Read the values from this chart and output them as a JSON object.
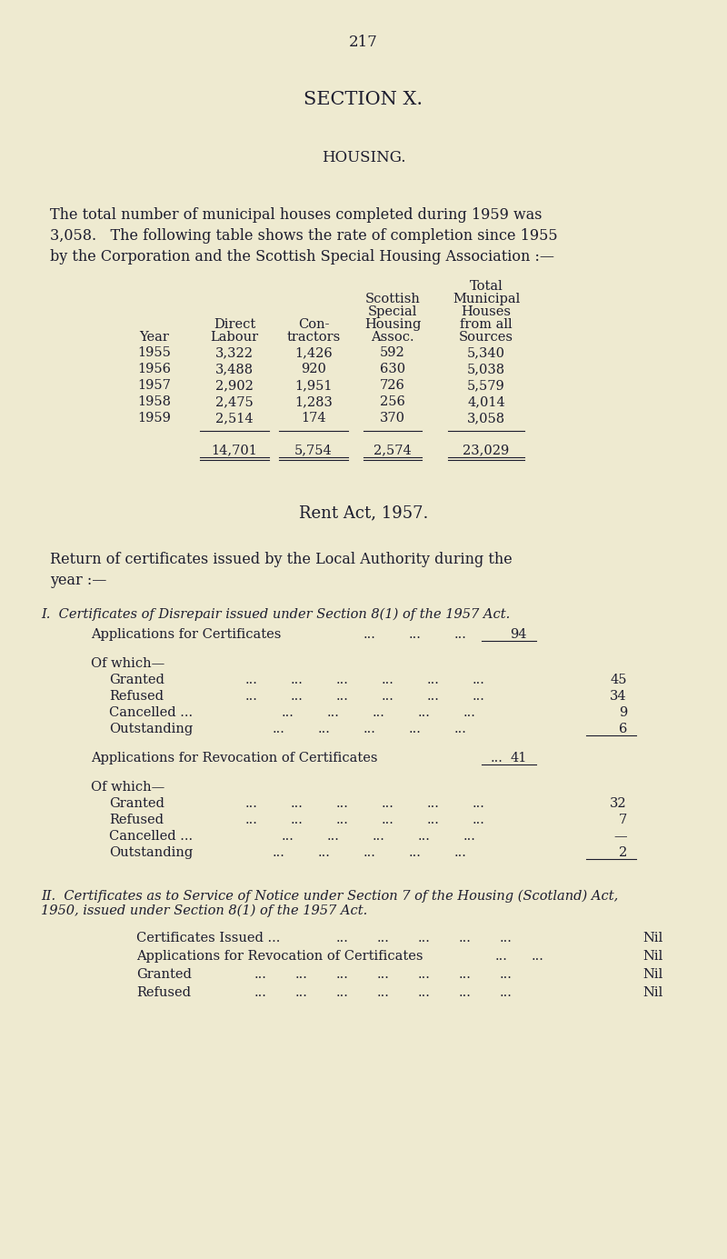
{
  "bg_color": "#eeead0",
  "text_color": "#1c1c2e",
  "page_number": "217",
  "section_title": "SECTION X.",
  "housing_title": "HOUSING.",
  "intro_line1": "The total number of municipal houses completed during 1959 was",
  "intro_line2": "3,058.   The following table shows the rate of completion since 1955",
  "intro_line3": "by the Corporation and the Scottish Special Housing Association :—",
  "table_data": [
    [
      "1955",
      "3,322",
      "1,426",
      "592",
      "5,340"
    ],
    [
      "1956",
      "3,488",
      "920",
      "630",
      "5,038"
    ],
    [
      "1957",
      "2,902",
      "1,951",
      "726",
      "5,579"
    ],
    [
      "1958",
      "2,475",
      "1,283",
      "256",
      "4,014"
    ],
    [
      "1959",
      "2,514",
      "174",
      "370",
      "3,058"
    ]
  ],
  "table_totals": [
    "14,701",
    "5,754",
    "2,574",
    "23,029"
  ],
  "rent_act_title": "Rent Act, 1957.",
  "apps_for_certs_val": "94",
  "granted_1_val": "45",
  "refused_1_val": "34",
  "cancelled_1_val": "9",
  "outstanding_1_val": "6",
  "apps_revoc_val": "41",
  "granted_2_val": "32",
  "refused_2_val": "7",
  "cancelled_2_dash": "—",
  "outstanding_2_val": "2",
  "certs_issued_val": "Nil",
  "apps_revoc_2_val": "Nil",
  "granted_3_val": "Nil",
  "refused_3_val": "Nil"
}
